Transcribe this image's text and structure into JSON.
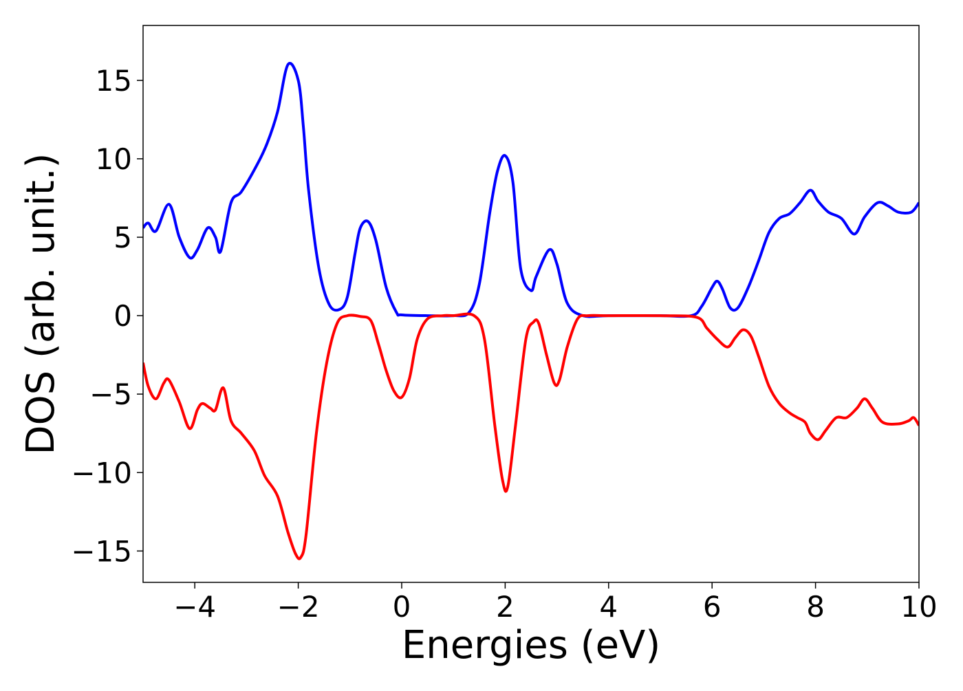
{
  "chart_data": {
    "type": "line",
    "title": "",
    "xlabel": "Energies (eV)",
    "ylabel": "DOS (arb. unit.)",
    "xlim": [
      -5,
      10
    ],
    "ylim": [
      -17,
      18.5
    ],
    "xticks": [
      -4,
      -2,
      0,
      2,
      4,
      6,
      8,
      10
    ],
    "xtick_labels": [
      "−4",
      "−2",
      "0",
      "2",
      "4",
      "6",
      "8",
      "10"
    ],
    "yticks": [
      -15,
      -10,
      -5,
      0,
      5,
      10,
      15
    ],
    "ytick_labels": [
      "−15",
      "−10",
      "−5",
      "0",
      "5",
      "10",
      "15"
    ],
    "grid": false,
    "legend": "none",
    "series": [
      {
        "color": "#0000ff",
        "x": [
          -5.0,
          -4.9,
          -4.75,
          -4.5,
          -4.3,
          -4.1,
          -3.95,
          -3.75,
          -3.6,
          -3.5,
          -3.3,
          -3.1,
          -2.8,
          -2.6,
          -2.4,
          -2.2,
          -2.0,
          -1.9,
          -1.8,
          -1.6,
          -1.4,
          -1.2,
          -1.05,
          -0.9,
          -0.8,
          -0.65,
          -0.5,
          -0.3,
          -0.1,
          0.0,
          0.5,
          1.0,
          1.3,
          1.5,
          1.7,
          1.85,
          2.0,
          2.15,
          2.3,
          2.5,
          2.6,
          2.85,
          3.0,
          3.2,
          3.5,
          4.0,
          5.0,
          5.6,
          5.8,
          6.0,
          6.1,
          6.2,
          6.35,
          6.5,
          6.7,
          6.9,
          7.1,
          7.3,
          7.5,
          7.7,
          7.9,
          8.05,
          8.25,
          8.5,
          8.75,
          8.95,
          9.2,
          9.4,
          9.6,
          9.85,
          10.0
        ],
        "y": [
          5.6,
          5.9,
          5.4,
          7.1,
          5.0,
          3.7,
          4.2,
          5.6,
          5.0,
          4.1,
          7.2,
          7.9,
          9.6,
          11.0,
          13.0,
          16.0,
          15.0,
          12.0,
          8.0,
          3.0,
          0.7,
          0.4,
          1.2,
          4.0,
          5.6,
          6.0,
          4.8,
          1.8,
          0.2,
          0.05,
          0.0,
          0.0,
          0.2,
          2.0,
          6.5,
          9.2,
          10.2,
          8.5,
          3.0,
          1.6,
          2.5,
          4.2,
          3.3,
          0.8,
          0.0,
          0.0,
          0.0,
          0.0,
          0.6,
          1.8,
          2.2,
          1.7,
          0.5,
          0.5,
          1.8,
          3.5,
          5.3,
          6.2,
          6.5,
          7.2,
          8.0,
          7.3,
          6.6,
          6.2,
          5.2,
          6.3,
          7.2,
          7.0,
          6.6,
          6.6,
          7.2
        ]
      },
      {
        "color": "#ff0000",
        "x": [
          -5.0,
          -4.9,
          -4.75,
          -4.6,
          -4.5,
          -4.3,
          -4.1,
          -3.95,
          -3.85,
          -3.7,
          -3.6,
          -3.45,
          -3.3,
          -3.1,
          -2.85,
          -2.65,
          -2.4,
          -2.2,
          -2.05,
          -1.95,
          -1.85,
          -1.65,
          -1.45,
          -1.25,
          -1.05,
          -0.8,
          -0.6,
          -0.45,
          -0.3,
          -0.15,
          0.0,
          0.15,
          0.3,
          0.5,
          0.8,
          1.0,
          1.4,
          1.6,
          1.8,
          1.95,
          2.05,
          2.2,
          2.4,
          2.55,
          2.65,
          2.8,
          2.95,
          3.05,
          3.2,
          3.4,
          3.6,
          4.0,
          5.0,
          5.7,
          5.9,
          6.1,
          6.3,
          6.45,
          6.6,
          6.75,
          6.9,
          7.1,
          7.3,
          7.5,
          7.65,
          7.8,
          7.9,
          8.05,
          8.2,
          8.4,
          8.6,
          8.8,
          8.95,
          9.1,
          9.3,
          9.6,
          9.8,
          9.9,
          10.0
        ],
        "y": [
          -3.0,
          -4.5,
          -5.3,
          -4.3,
          -4.1,
          -5.5,
          -7.2,
          -6.0,
          -5.6,
          -5.9,
          -6.0,
          -4.6,
          -6.7,
          -7.5,
          -8.6,
          -10.2,
          -11.5,
          -13.8,
          -15.2,
          -15.4,
          -14.0,
          -7.5,
          -3.0,
          -0.5,
          0.0,
          -0.05,
          -0.3,
          -1.8,
          -3.5,
          -4.8,
          -5.2,
          -4.0,
          -1.5,
          -0.2,
          0.0,
          0.0,
          0.0,
          -1.5,
          -7.0,
          -10.5,
          -10.9,
          -7.0,
          -1.5,
          -0.4,
          -0.5,
          -2.5,
          -4.3,
          -4.1,
          -2.0,
          -0.2,
          0.0,
          0.0,
          0.0,
          -0.1,
          -0.8,
          -1.5,
          -2.0,
          -1.4,
          -0.9,
          -1.3,
          -2.6,
          -4.5,
          -5.6,
          -6.2,
          -6.5,
          -6.8,
          -7.5,
          -7.9,
          -7.3,
          -6.5,
          -6.5,
          -5.9,
          -5.3,
          -5.9,
          -6.8,
          -6.9,
          -6.7,
          -6.5,
          -7.0
        ]
      }
    ]
  }
}
